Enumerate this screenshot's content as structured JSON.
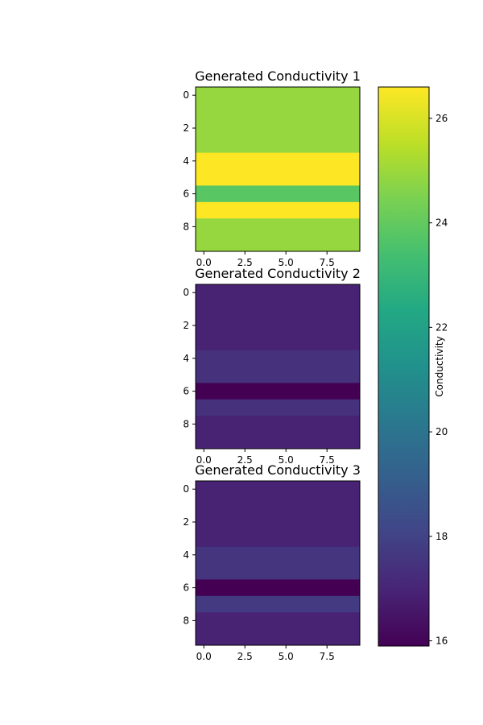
{
  "chart_data": {
    "type": "heatmap",
    "panels": [
      {
        "title": "Generated Conductivity 1",
        "row_values": [
          24.9,
          24.9,
          24.9,
          24.9,
          26.6,
          26.6,
          23.8,
          26.6,
          24.9,
          24.9
        ],
        "x_ticks": [
          0.0,
          2.5,
          5.0,
          7.5
        ],
        "x_tick_labels": [
          "0.0",
          "2.5",
          "5.0",
          "7.5"
        ],
        "y_ticks": [
          0,
          2,
          4,
          6,
          8
        ],
        "y_tick_labels": [
          "0",
          "2",
          "4",
          "6",
          "8"
        ],
        "xlim": [
          -0.5,
          9.5
        ],
        "ylim": [
          9.5,
          -0.5
        ]
      },
      {
        "title": "Generated Conductivity 2",
        "row_values": [
          16.9,
          16.9,
          16.9,
          16.9,
          17.4,
          17.4,
          15.9,
          17.4,
          16.9,
          16.9
        ],
        "x_ticks": [
          0.0,
          2.5,
          5.0,
          7.5
        ],
        "x_tick_labels": [
          "0.0",
          "2.5",
          "5.0",
          "7.5"
        ],
        "y_ticks": [
          0,
          2,
          4,
          6,
          8
        ],
        "y_tick_labels": [
          "0",
          "2",
          "4",
          "6",
          "8"
        ],
        "xlim": [
          -0.5,
          9.5
        ],
        "ylim": [
          9.5,
          -0.5
        ]
      },
      {
        "title": "Generated Conductivity 3",
        "row_values": [
          16.9,
          16.9,
          16.9,
          16.9,
          17.5,
          17.5,
          15.9,
          17.7,
          16.9,
          16.9
        ],
        "x_ticks": [
          0.0,
          2.5,
          5.0,
          7.5
        ],
        "x_tick_labels": [
          "0.0",
          "2.5",
          "5.0",
          "7.5"
        ],
        "y_ticks": [
          0,
          2,
          4,
          6,
          8
        ],
        "y_tick_labels": [
          "0",
          "2",
          "4",
          "6",
          "8"
        ],
        "xlim": [
          -0.5,
          9.5
        ],
        "ylim": [
          9.5,
          -0.5
        ]
      }
    ],
    "colorbar": {
      "label": "Conductivity",
      "colormap": "viridis",
      "vmin": 15.9,
      "vmax": 26.6,
      "ticks": [
        16,
        18,
        20,
        22,
        24,
        26
      ],
      "tick_labels": [
        "16",
        "18",
        "20",
        "22",
        "24",
        "26"
      ]
    },
    "grid": false
  }
}
